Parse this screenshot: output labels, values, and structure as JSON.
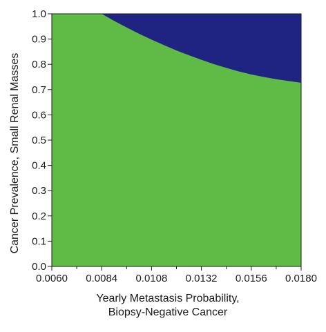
{
  "chart_data": {
    "type": "area",
    "xlabel_lines": [
      "Yearly Metastasis Probability,",
      "Biopsy-Negative Cancer"
    ],
    "ylabel": "Cancer Prevalence, Small Renal Masses",
    "xlim": [
      0.006,
      0.018
    ],
    "ylim": [
      0.0,
      1.0
    ],
    "x_ticks": [
      "0.0060",
      "0.0084",
      "0.0108",
      "0.0132",
      "0.0156",
      "0.0180"
    ],
    "y_ticks": [
      "0.0",
      "0.1",
      "0.2",
      "0.3",
      "0.4",
      "0.5",
      "0.6",
      "0.7",
      "0.8",
      "0.9",
      "1.0"
    ],
    "x_minor_ticks": [
      0.0072,
      0.0096,
      0.012,
      0.0144,
      0.0168
    ],
    "grid": false,
    "legend": "none",
    "regions": [
      {
        "color": "#5fba46",
        "fills": "below boundary"
      },
      {
        "color": "#1f2382",
        "fills": "above boundary"
      }
    ],
    "boundary": {
      "x": [
        0.0084,
        0.009,
        0.0096,
        0.0102,
        0.0108,
        0.0114,
        0.012,
        0.0126,
        0.0132,
        0.0138,
        0.0144,
        0.015,
        0.0156,
        0.0162,
        0.0168,
        0.0174,
        0.018
      ],
      "y": [
        1.0,
        0.972,
        0.946,
        0.921,
        0.898,
        0.876,
        0.855,
        0.836,
        0.818,
        0.801,
        0.786,
        0.772,
        0.76,
        0.75,
        0.741,
        0.734,
        0.727
      ]
    }
  }
}
